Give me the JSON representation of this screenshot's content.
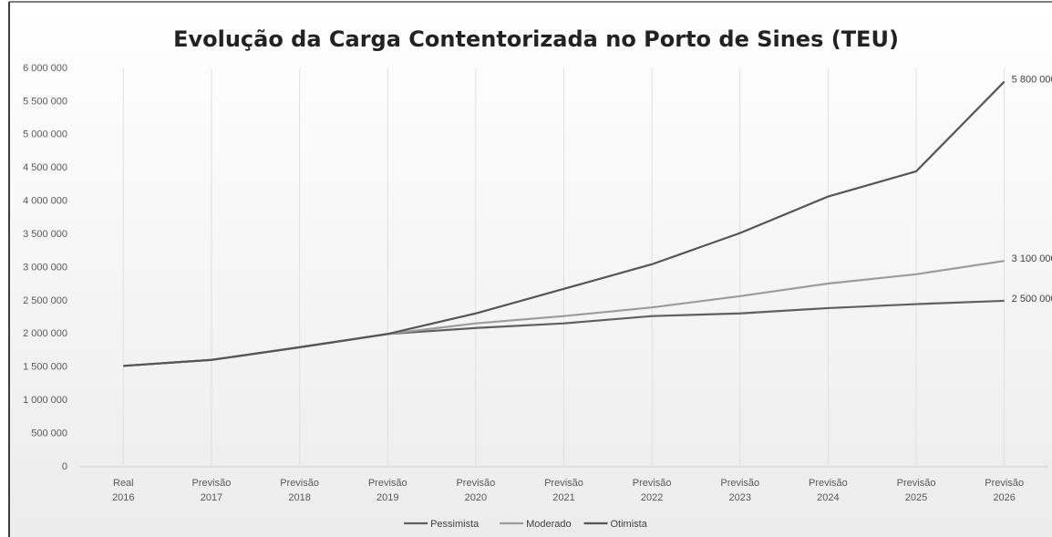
{
  "chart_data": {
    "type": "line",
    "title": "Evolução da Carga Contentorizada no Porto de Sines (TEU)",
    "categories": [
      "Real 2016",
      "Previsão 2017",
      "Previsão 2018",
      "Previsão 2019",
      "Previsão 2020",
      "Previsão 2021",
      "Previsão 2022",
      "Previsão 2023",
      "Previsão 2024",
      "Previsão 2025",
      "Previsão 2026"
    ],
    "series": [
      {
        "name": "Pessimista",
        "color": "#5f5f5f",
        "values": [
          1520000,
          1610000,
          1800000,
          2000000,
          2090000,
          2160000,
          2270000,
          2310000,
          2390000,
          2450000,
          2500000
        ],
        "value_labels": [
          null,
          null,
          null,
          null,
          null,
          null,
          null,
          null,
          null,
          null,
          "2 500 000"
        ]
      },
      {
        "name": "Moderado",
        "color": "#9c9c9c",
        "values": [
          1520000,
          1610000,
          1800000,
          2000000,
          2160000,
          2270000,
          2400000,
          2570000,
          2760000,
          2900000,
          3100000
        ],
        "value_labels": [
          null,
          null,
          null,
          null,
          null,
          null,
          null,
          null,
          null,
          null,
          "3 100 000"
        ]
      },
      {
        "name": "Otimista",
        "color": "#555555",
        "values": [
          1520000,
          1610000,
          1800000,
          2000000,
          2310000,
          2680000,
          3050000,
          3520000,
          4070000,
          4450000,
          5800000
        ],
        "value_labels": [
          null,
          null,
          null,
          null,
          null,
          null,
          null,
          null,
          null,
          null,
          "5 800 000"
        ]
      }
    ],
    "ylim": [
      0,
      6000000
    ],
    "yticks": [
      0,
      {
        "value": 500000,
        "label": "500 000"
      },
      {
        "value": 1000000,
        "label": "1 000 000"
      },
      {
        "value": 1500000,
        "label": "1 500 000"
      },
      {
        "value": 2000000,
        "label": "2 000 000"
      },
      {
        "value": 2500000,
        "label": "2 500 000"
      },
      {
        "value": 3000000,
        "label": "3 000 000"
      },
      {
        "value": 3500000,
        "label": "3 500 000"
      },
      {
        "value": 4000000,
        "label": "4 000 000"
      },
      {
        "value": 4500000,
        "label": "4 500 000"
      },
      {
        "value": 5000000,
        "label": "5 000 000"
      },
      {
        "value": 5500000,
        "label": "5 500 000"
      },
      {
        "value": 6000000,
        "label": "6 000 000"
      }
    ],
    "grid": true
  }
}
